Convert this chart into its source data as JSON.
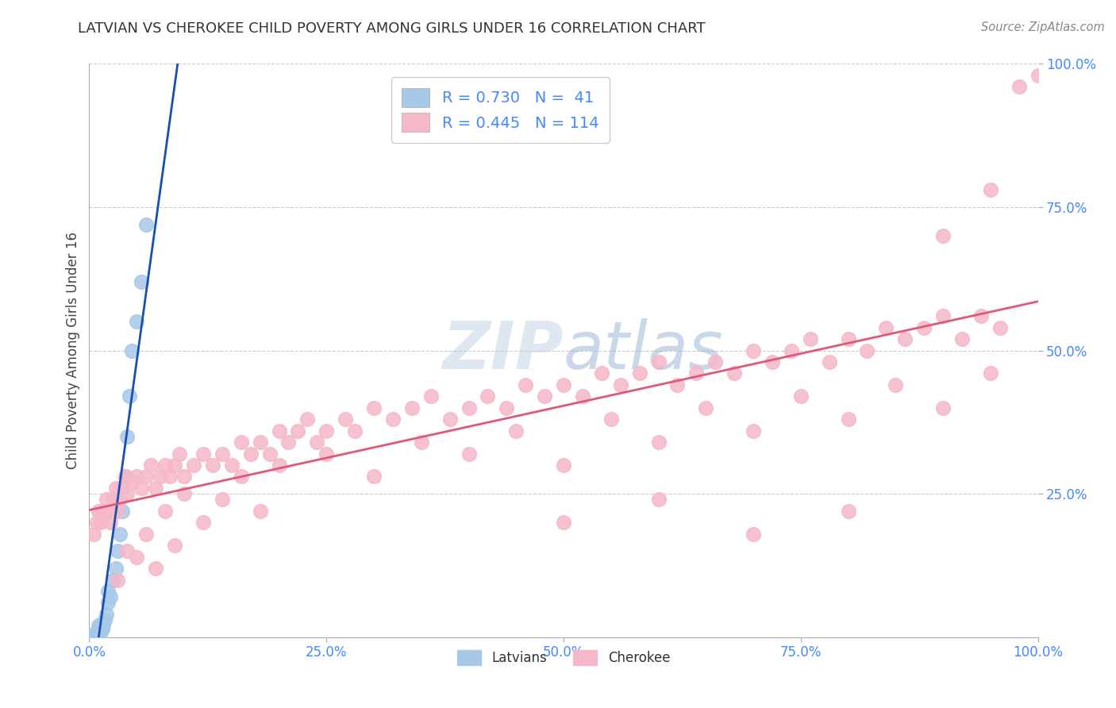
{
  "title": "LATVIAN VS CHEROKEE CHILD POVERTY AMONG GIRLS UNDER 16 CORRELATION CHART",
  "source": "Source: ZipAtlas.com",
  "ylabel": "Child Poverty Among Girls Under 16",
  "xlim": [
    0.0,
    1.0
  ],
  "ylim": [
    0.0,
    1.0
  ],
  "x_tick_labels": [
    "0.0%",
    "25.0%",
    "50.0%",
    "75.0%",
    "100.0%"
  ],
  "x_tick_vals": [
    0.0,
    0.25,
    0.5,
    0.75,
    1.0
  ],
  "y_tick_labels": [
    "25.0%",
    "50.0%",
    "75.0%",
    "100.0%"
  ],
  "y_tick_vals": [
    0.25,
    0.5,
    0.75,
    1.0
  ],
  "latvian_R": 0.73,
  "latvian_N": 41,
  "cherokee_R": 0.445,
  "cherokee_N": 114,
  "latvian_color": "#a8c8e8",
  "cherokee_color": "#f5b8c8",
  "latvian_line_color": "#1a4fb0",
  "cherokee_line_color": "#e05878",
  "watermark": "ZIPatlas",
  "background_color": "#ffffff",
  "grid_color": "#cccccc",
  "title_color": "#333333",
  "tick_color": "#4488ff",
  "legend_text_color": "#4488ff",
  "lv_x": [
    0.005,
    0.005,
    0.005,
    0.005,
    0.005,
    0.005,
    0.007,
    0.007,
    0.008,
    0.008,
    0.009,
    0.009,
    0.01,
    0.01,
    0.01,
    0.01,
    0.01,
    0.01,
    0.012,
    0.012,
    0.013,
    0.014,
    0.015,
    0.015,
    0.016,
    0.018,
    0.02,
    0.02,
    0.022,
    0.025,
    0.028,
    0.03,
    0.032,
    0.035,
    0.038,
    0.04,
    0.042,
    0.045,
    0.05,
    0.055,
    0.06
  ],
  "lv_y": [
    0.0,
    0.0,
    0.0,
    0.0,
    0.0,
    0.005,
    0.0,
    0.0,
    0.0,
    0.005,
    0.0,
    0.005,
    0.0,
    0.0,
    0.005,
    0.01,
    0.015,
    0.02,
    0.01,
    0.015,
    0.02,
    0.015,
    0.02,
    0.025,
    0.03,
    0.04,
    0.06,
    0.08,
    0.07,
    0.1,
    0.12,
    0.15,
    0.18,
    0.22,
    0.28,
    0.35,
    0.42,
    0.5,
    0.55,
    0.62,
    0.72
  ],
  "ck_x": [
    0.005,
    0.008,
    0.01,
    0.012,
    0.015,
    0.018,
    0.02,
    0.022,
    0.025,
    0.028,
    0.03,
    0.032,
    0.035,
    0.038,
    0.04,
    0.045,
    0.05,
    0.055,
    0.06,
    0.065,
    0.07,
    0.075,
    0.08,
    0.085,
    0.09,
    0.095,
    0.1,
    0.11,
    0.12,
    0.13,
    0.14,
    0.15,
    0.16,
    0.17,
    0.18,
    0.19,
    0.2,
    0.21,
    0.22,
    0.23,
    0.24,
    0.25,
    0.27,
    0.28,
    0.3,
    0.32,
    0.34,
    0.36,
    0.38,
    0.4,
    0.42,
    0.44,
    0.46,
    0.48,
    0.5,
    0.52,
    0.54,
    0.56,
    0.58,
    0.6,
    0.62,
    0.64,
    0.66,
    0.68,
    0.7,
    0.72,
    0.74,
    0.76,
    0.78,
    0.8,
    0.82,
    0.84,
    0.86,
    0.88,
    0.9,
    0.92,
    0.94,
    0.96,
    0.98,
    1.0,
    0.04,
    0.06,
    0.08,
    0.1,
    0.12,
    0.14,
    0.16,
    0.18,
    0.2,
    0.25,
    0.3,
    0.35,
    0.4,
    0.45,
    0.5,
    0.55,
    0.6,
    0.65,
    0.7,
    0.75,
    0.8,
    0.85,
    0.9,
    0.95,
    0.5,
    0.6,
    0.7,
    0.8,
    0.9,
    0.95,
    0.03,
    0.05,
    0.07,
    0.09
  ],
  "ck_y": [
    0.18,
    0.2,
    0.22,
    0.2,
    0.22,
    0.24,
    0.22,
    0.2,
    0.24,
    0.26,
    0.22,
    0.24,
    0.26,
    0.28,
    0.25,
    0.27,
    0.28,
    0.26,
    0.28,
    0.3,
    0.26,
    0.28,
    0.3,
    0.28,
    0.3,
    0.32,
    0.28,
    0.3,
    0.32,
    0.3,
    0.32,
    0.3,
    0.34,
    0.32,
    0.34,
    0.32,
    0.36,
    0.34,
    0.36,
    0.38,
    0.34,
    0.36,
    0.38,
    0.36,
    0.4,
    0.38,
    0.4,
    0.42,
    0.38,
    0.4,
    0.42,
    0.4,
    0.44,
    0.42,
    0.44,
    0.42,
    0.46,
    0.44,
    0.46,
    0.48,
    0.44,
    0.46,
    0.48,
    0.46,
    0.5,
    0.48,
    0.5,
    0.52,
    0.48,
    0.52,
    0.5,
    0.54,
    0.52,
    0.54,
    0.56,
    0.52,
    0.56,
    0.54,
    0.96,
    0.98,
    0.15,
    0.18,
    0.22,
    0.25,
    0.2,
    0.24,
    0.28,
    0.22,
    0.3,
    0.32,
    0.28,
    0.34,
    0.32,
    0.36,
    0.3,
    0.38,
    0.34,
    0.4,
    0.36,
    0.42,
    0.38,
    0.44,
    0.4,
    0.46,
    0.2,
    0.24,
    0.18,
    0.22,
    0.7,
    0.78,
    0.1,
    0.14,
    0.12,
    0.16
  ]
}
